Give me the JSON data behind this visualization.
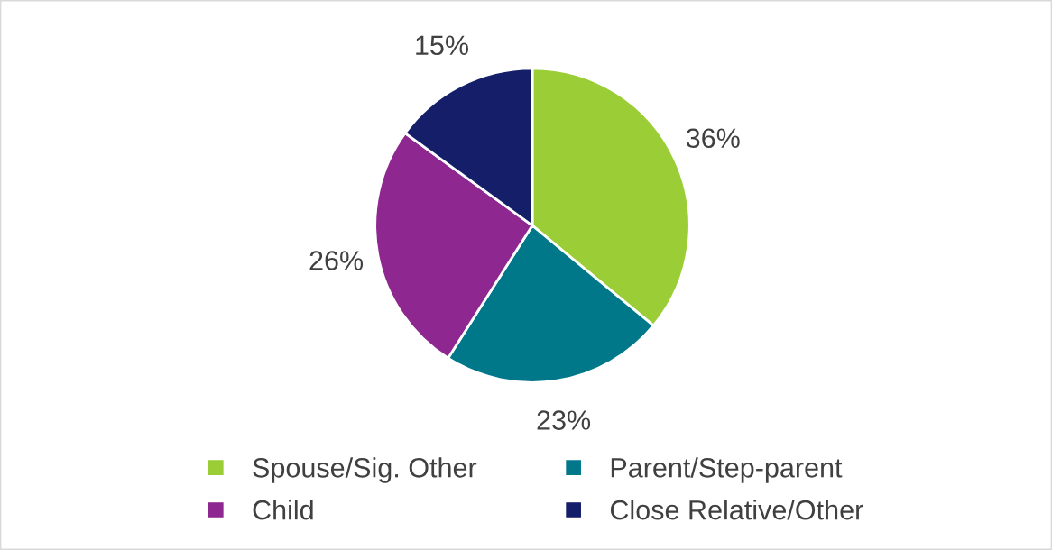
{
  "chart_data": {
    "type": "pie",
    "categories": [
      "Spouse/Sig. Other",
      "Parent/Step-parent",
      "Child",
      "Close Relative/Other"
    ],
    "values": [
      36,
      23,
      26,
      15
    ],
    "colors": [
      "#9acd36",
      "#00788a",
      "#8e278f",
      "#151e69"
    ],
    "value_labels": [
      "36%",
      "23%",
      "26%",
      "15%"
    ],
    "legend": "bottom"
  }
}
